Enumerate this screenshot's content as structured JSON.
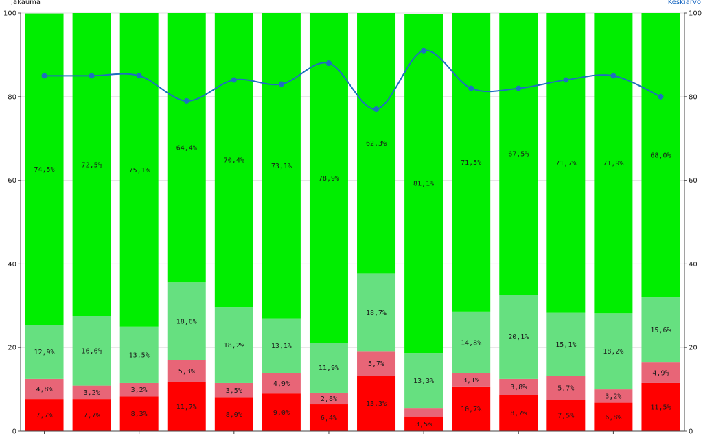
{
  "chart_data": {
    "type": "bar",
    "stacked": true,
    "left_axis_title": "Jakauma",
    "right_axis_title": "Keskiarvo",
    "ylim": [
      0,
      100
    ],
    "y2lim": [
      0,
      100
    ],
    "yticks": [
      0,
      20,
      40,
      60,
      80,
      100
    ],
    "grid": true,
    "n_categories": 14,
    "series": [
      {
        "name": "",
        "color": "#ff0000",
        "values": [
          7.7,
          7.7,
          8.3,
          11.7,
          8.0,
          9.0,
          6.4,
          13.3,
          3.5,
          10.7,
          8.7,
          7.5,
          6.8,
          11.5
        ],
        "labels": [
          "7,7%",
          "7,7%",
          "8,3%",
          "11,7%",
          "8,0%",
          "9,0%",
          "6,4%",
          "13,3%",
          "3,5%",
          "10,7%",
          "8,7%",
          "7,5%",
          "6,8%",
          "11,5%"
        ]
      },
      {
        "name": "",
        "color": "#e86577",
        "values": [
          4.8,
          3.2,
          3.2,
          5.3,
          3.5,
          4.9,
          2.8,
          5.7,
          1.9,
          3.1,
          3.8,
          5.7,
          3.2,
          4.9
        ],
        "labels": [
          "4,8%",
          "3,2%",
          "3,2%",
          "5,3%",
          "3,5%",
          "4,9%",
          "2,8%",
          "5,7%",
          "",
          "3,1%",
          "3,8%",
          "5,7%",
          "3,2%",
          "4,9%"
        ]
      },
      {
        "name": "",
        "color": "#66e080",
        "values": [
          12.9,
          16.6,
          13.5,
          18.6,
          18.2,
          13.1,
          11.9,
          18.7,
          13.3,
          14.8,
          20.1,
          15.1,
          18.2,
          15.6
        ],
        "labels": [
          "12,9%",
          "16,6%",
          "13,5%",
          "18,6%",
          "18,2%",
          "13,1%",
          "11,9%",
          "18,7%",
          "13,3%",
          "14,8%",
          "20,1%",
          "15,1%",
          "18,2%",
          "15,6%"
        ]
      },
      {
        "name": "",
        "color": "#00ee00",
        "values": [
          74.5,
          72.5,
          75.1,
          64.4,
          70.4,
          73.1,
          78.9,
          62.3,
          81.1,
          71.5,
          67.5,
          71.7,
          71.9,
          68.0
        ],
        "labels": [
          "74,5%",
          "72,5%",
          "75,1%",
          "64,4%",
          "70,4%",
          "73,1%",
          "78,9%",
          "62,3%",
          "81,1%",
          "71,5%",
          "67,5%",
          "71,7%",
          "71,9%",
          "68,0%"
        ]
      }
    ],
    "line": {
      "axis": "right",
      "color": "#1e6fbf",
      "values": [
        85,
        85,
        85,
        79,
        84,
        83,
        88,
        77,
        91,
        82,
        82,
        84,
        85,
        80
      ]
    }
  }
}
